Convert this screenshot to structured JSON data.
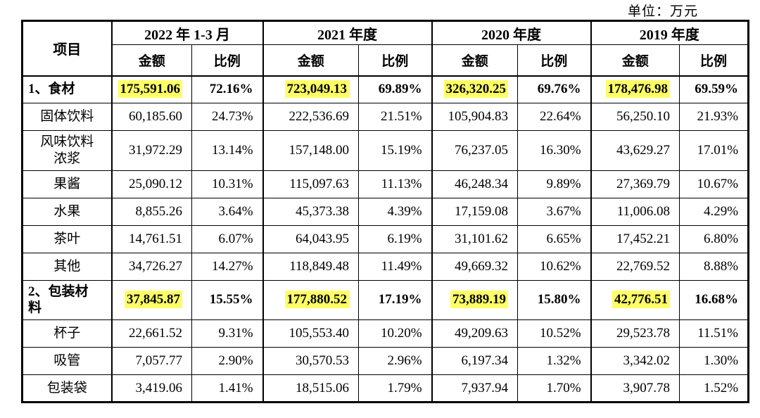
{
  "unit_label": "单位：万元",
  "table": {
    "item_header": "项目",
    "periods": [
      {
        "label": "2022 年 1-3 月"
      },
      {
        "label": "2021 年度"
      },
      {
        "label": "2020 年度"
      },
      {
        "label": "2019 年度"
      }
    ],
    "amount_header": "金额",
    "ratio_header": "比例",
    "rows": [
      {
        "name": "1、食材",
        "category": true,
        "values": [
          "175,591.06",
          "72.16%",
          "723,049.13",
          "69.89%",
          "326,320.25",
          "69.76%",
          "178,476.98",
          "69.59%"
        ]
      },
      {
        "name": "固体饮料",
        "category": false,
        "values": [
          "60,185.60",
          "24.73%",
          "222,536.69",
          "21.51%",
          "105,904.83",
          "22.64%",
          "56,250.10",
          "21.93%"
        ]
      },
      {
        "name": "风味饮料\n浓浆",
        "category": false,
        "values": [
          "31,972.29",
          "13.14%",
          "157,148.00",
          "15.19%",
          "76,237.05",
          "16.30%",
          "43,629.27",
          "17.01%"
        ]
      },
      {
        "name": "果酱",
        "category": false,
        "values": [
          "25,090.12",
          "10.31%",
          "115,097.63",
          "11.13%",
          "46,248.34",
          "9.89%",
          "27,369.79",
          "10.67%"
        ]
      },
      {
        "name": "水果",
        "category": false,
        "values": [
          "8,855.26",
          "3.64%",
          "45,373.38",
          "4.39%",
          "17,159.08",
          "3.67%",
          "11,006.08",
          "4.29%"
        ]
      },
      {
        "name": "茶叶",
        "category": false,
        "values": [
          "14,761.51",
          "6.07%",
          "64,043.95",
          "6.19%",
          "31,101.62",
          "6.65%",
          "17,452.21",
          "6.80%"
        ]
      },
      {
        "name": "其他",
        "category": false,
        "values": [
          "34,726.27",
          "14.27%",
          "118,849.48",
          "11.49%",
          "49,669.32",
          "10.62%",
          "22,769.52",
          "8.88%"
        ]
      },
      {
        "name": "2、包装材\n料",
        "category": true,
        "values": [
          "37,845.87",
          "15.55%",
          "177,880.52",
          "17.19%",
          "73,889.19",
          "15.80%",
          "42,776.51",
          "16.68%"
        ]
      },
      {
        "name": "杯子",
        "category": false,
        "values": [
          "22,661.52",
          "9.31%",
          "105,553.40",
          "10.20%",
          "49,209.63",
          "10.52%",
          "29,523.78",
          "11.51%"
        ]
      },
      {
        "name": "吸管",
        "category": false,
        "values": [
          "7,057.77",
          "2.90%",
          "30,570.53",
          "2.96%",
          "6,197.34",
          "1.32%",
          "3,342.02",
          "1.30%"
        ]
      },
      {
        "name": "包装袋",
        "category": false,
        "values": [
          "3,419.06",
          "1.41%",
          "18,515.06",
          "1.79%",
          "7,937.94",
          "1.70%",
          "3,907.78",
          "1.52%"
        ]
      }
    ]
  },
  "colors": {
    "highlight": "#ffff66",
    "border": "#000000",
    "text": "#000000"
  }
}
